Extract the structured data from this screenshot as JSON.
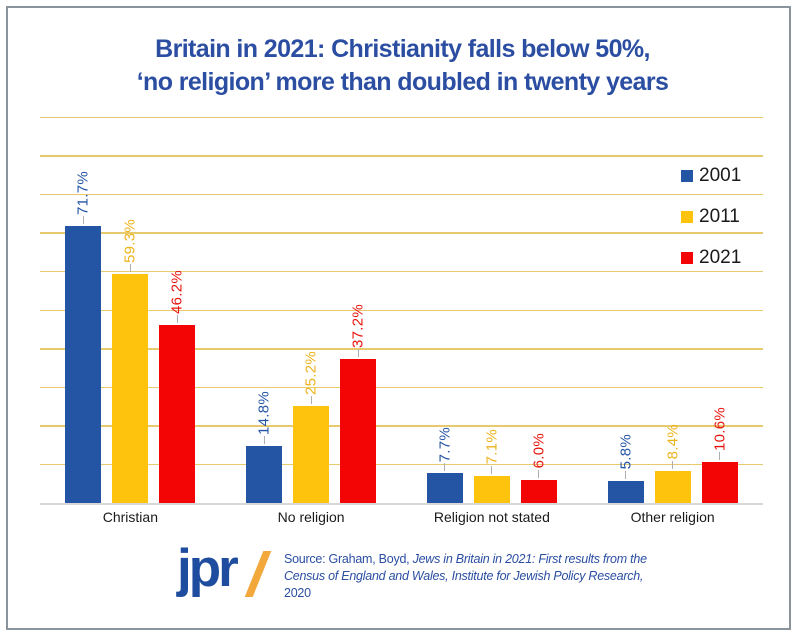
{
  "title": {
    "line1": "Britain in 2021: Christianity falls below 50%,",
    "line2": "‘no religion’ more than doubled in twenty years"
  },
  "chart_data": {
    "type": "bar",
    "categories": [
      "Christian",
      "No religion",
      "Religion not stated",
      "Other religion"
    ],
    "series": [
      {
        "name": "2001",
        "color": "#2455A4",
        "label_color": "#2455A4",
        "values": [
          71.7,
          14.8,
          7.7,
          5.8
        ]
      },
      {
        "name": "2011",
        "color": "#FEC40D",
        "label_color": "#EDB31C",
        "values": [
          59.3,
          25.2,
          7.1,
          8.4
        ]
      },
      {
        "name": "2021",
        "color": "#F40505",
        "label_color": "#E8150D",
        "values": [
          46.2,
          37.2,
          6.0,
          10.6
        ]
      }
    ],
    "value_suffix": "%",
    "ylabel": "",
    "xlabel": "",
    "ylim": [
      0,
      100
    ],
    "grid_step": 10,
    "grid_on": true,
    "grid_color": "#E7CA6E",
    "baseline_color": "#D8D8D8",
    "legend_position": "upper-right",
    "data_labels": "rotated-90-above-bars"
  },
  "footer": {
    "logo_text": "jpr",
    "source_line1_regular": "Source: Graham, Boyd, ",
    "source_line1_italic": "Jews in Britain in 2021: First results from the",
    "source_line2_italic": "Census of England and Wales, Institute for Jewish Policy Research,",
    "source_line3": "2020"
  },
  "colors": {
    "title": "#2B4EA2",
    "border": "#8A949C",
    "logo": "#1E4C9E",
    "slash": "#F2A83B",
    "source_text": "#2B4EA2"
  }
}
